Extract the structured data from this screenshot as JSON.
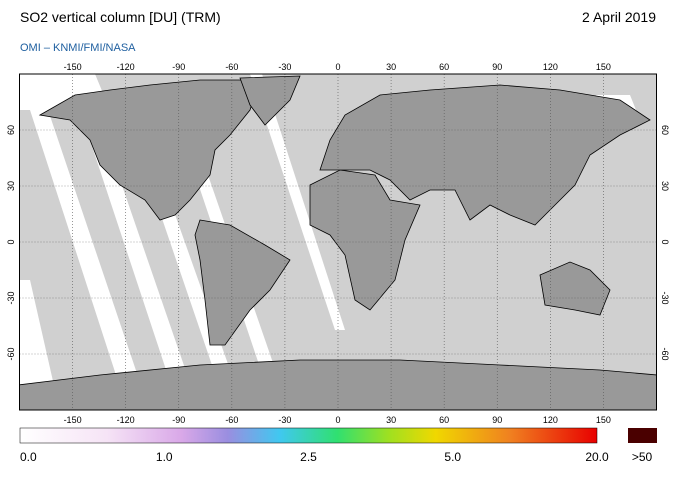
{
  "header": {
    "title": "SO2 vertical column [DU] (TRM)",
    "date": "2 April 2019",
    "source": "OMI  –  KNMI/FMI/NASA"
  },
  "map": {
    "lon_range": [
      -180,
      180
    ],
    "lat_range": [
      -90,
      90
    ],
    "lon_ticks": [
      -150,
      -120,
      -90,
      -60,
      -30,
      0,
      30,
      60,
      90,
      120,
      150
    ],
    "lat_ticks": [
      60,
      30,
      0,
      -30,
      -60
    ]
  },
  "colorbar": {
    "ticks": [
      {
        "value": 0,
        "label": "0.0"
      },
      {
        "value": 1,
        "label": "1.0"
      },
      {
        "value": 2.5,
        "label": "2.5"
      },
      {
        "value": 5,
        "label": "5.0"
      },
      {
        "value": 20,
        "label": "20.0"
      }
    ],
    "overflow": ">50"
  }
}
